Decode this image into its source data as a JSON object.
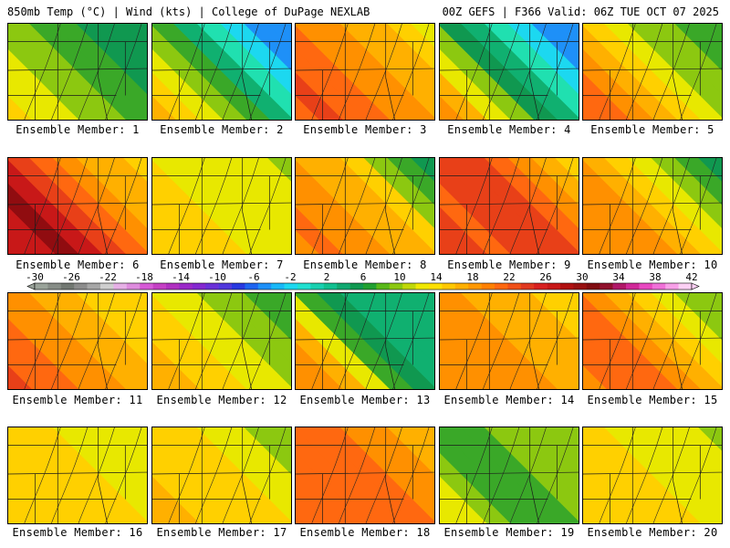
{
  "header": {
    "left": "850mb Temp (°C) | Wind (kts) | College of DuPage NEXLAB",
    "right": "00Z GEFS | F366 Valid: 06Z TUE OCT 07 2025"
  },
  "members": [
    {
      "label": "Ensemble Member: 1",
      "profile": [
        15,
        14,
        13,
        12,
        11,
        10,
        9,
        8,
        8,
        8
      ]
    },
    {
      "label": "Ensemble Member: 2",
      "profile": [
        18,
        16,
        14,
        12,
        9,
        6,
        3,
        1,
        -2,
        -3
      ]
    },
    {
      "label": "Ensemble Member: 3",
      "profile": [
        22,
        23,
        22,
        21,
        20,
        19,
        18,
        17,
        16,
        14
      ]
    },
    {
      "label": "Ensemble Member: 4",
      "profile": [
        19,
        17,
        14,
        11,
        8,
        5,
        3,
        1,
        -2,
        -5
      ]
    },
    {
      "label": "Ensemble Member: 5",
      "profile": [
        22,
        21,
        19,
        17,
        15,
        13,
        12,
        11,
        10,
        10
      ]
    },
    {
      "label": "Ensemble Member: 6",
      "profile": [
        25,
        26,
        27,
        26,
        24,
        22,
        20,
        18,
        17,
        16
      ]
    },
    {
      "label": "Ensemble Member: 7",
      "profile": [
        16,
        16,
        15,
        15,
        14,
        14,
        13,
        13,
        13,
        12
      ]
    },
    {
      "label": "Ensemble Member: 8",
      "profile": [
        20,
        21,
        20,
        19,
        18,
        17,
        15,
        12,
        10,
        8
      ]
    },
    {
      "label": "Ensemble Member: 9",
      "profile": [
        23,
        23,
        22,
        23,
        24,
        23,
        22,
        19,
        17,
        16
      ]
    },
    {
      "label": "Ensemble Member: 10",
      "profile": [
        19,
        20,
        20,
        19,
        18,
        16,
        14,
        12,
        10,
        8
      ]
    },
    {
      "label": "Ensemble Member: 11",
      "profile": [
        23,
        22,
        21,
        20,
        19,
        18,
        17,
        16,
        16,
        15
      ]
    },
    {
      "label": "Ensemble Member: 12",
      "profile": [
        18,
        17,
        16,
        15,
        14,
        13,
        12,
        11,
        10,
        10
      ]
    },
    {
      "label": "Ensemble Member: 13",
      "profile": [
        20,
        19,
        17,
        13,
        10,
        7,
        6,
        6,
        5,
        5
      ]
    },
    {
      "label": "Ensemble Member: 14",
      "profile": [
        19,
        20,
        20,
        20,
        19,
        18,
        18,
        17,
        16,
        16
      ]
    },
    {
      "label": "Ensemble Member: 15",
      "profile": [
        20,
        21,
        22,
        21,
        20,
        17,
        15,
        13,
        12,
        11
      ]
    },
    {
      "label": "Ensemble Member: 16",
      "profile": [
        16,
        16,
        15,
        15,
        15,
        15,
        14,
        14,
        13,
        13
      ]
    },
    {
      "label": "Ensemble Member: 17",
      "profile": [
        17,
        17,
        16,
        16,
        15,
        15,
        14,
        13,
        12,
        12
      ]
    },
    {
      "label": "Ensemble Member: 18",
      "profile": [
        21,
        22,
        22,
        22,
        21,
        21,
        20,
        19,
        18,
        17
      ]
    },
    {
      "label": "Ensemble Member: 19",
      "profile": [
        14,
        13,
        12,
        10,
        10,
        10,
        11,
        11,
        11,
        11
      ]
    },
    {
      "label": "Ensemble Member: 20",
      "profile": [
        16,
        16,
        16,
        15,
        15,
        14,
        14,
        13,
        13,
        12
      ]
    }
  ],
  "colorbar": {
    "ticks": [
      "-30",
      "-26",
      "-22",
      "-18",
      "-14",
      "-10",
      "-6",
      "-2",
      "2",
      "6",
      "10",
      "14",
      "18",
      "22",
      "26",
      "30",
      "34",
      "38",
      "42"
    ],
    "colors": [
      "#9aa39a",
      "#868c86",
      "#727872",
      "#8c8c8c",
      "#a6a6a6",
      "#cfcfcf",
      "#e6b0e6",
      "#de8cde",
      "#d65ad6",
      "#c440c4",
      "#b030c0",
      "#9a28c8",
      "#8428d0",
      "#6a30d8",
      "#5038dc",
      "#2838e0",
      "#1e64f0",
      "#1e90f8",
      "#18b8f8",
      "#1cd8f0",
      "#20e0d0",
      "#18d0b0",
      "#10c090",
      "#10a870",
      "#109850",
      "#20a030",
      "#58b818",
      "#8cc810",
      "#c0d808",
      "#f0e800",
      "#ffe000",
      "#ffc800",
      "#ffb000",
      "#ff9800",
      "#ff8000",
      "#ff6810",
      "#f05018",
      "#e03820",
      "#d82020",
      "#c81818",
      "#b01010",
      "#981010",
      "#800c10",
      "#90102c",
      "#b01868",
      "#d02898",
      "#e848c0",
      "#f070d8",
      "#f8a0e8",
      "#fcd0f4"
    ]
  },
  "colors": {
    "map_border": "#000000",
    "line": "#1a1a1a"
  }
}
